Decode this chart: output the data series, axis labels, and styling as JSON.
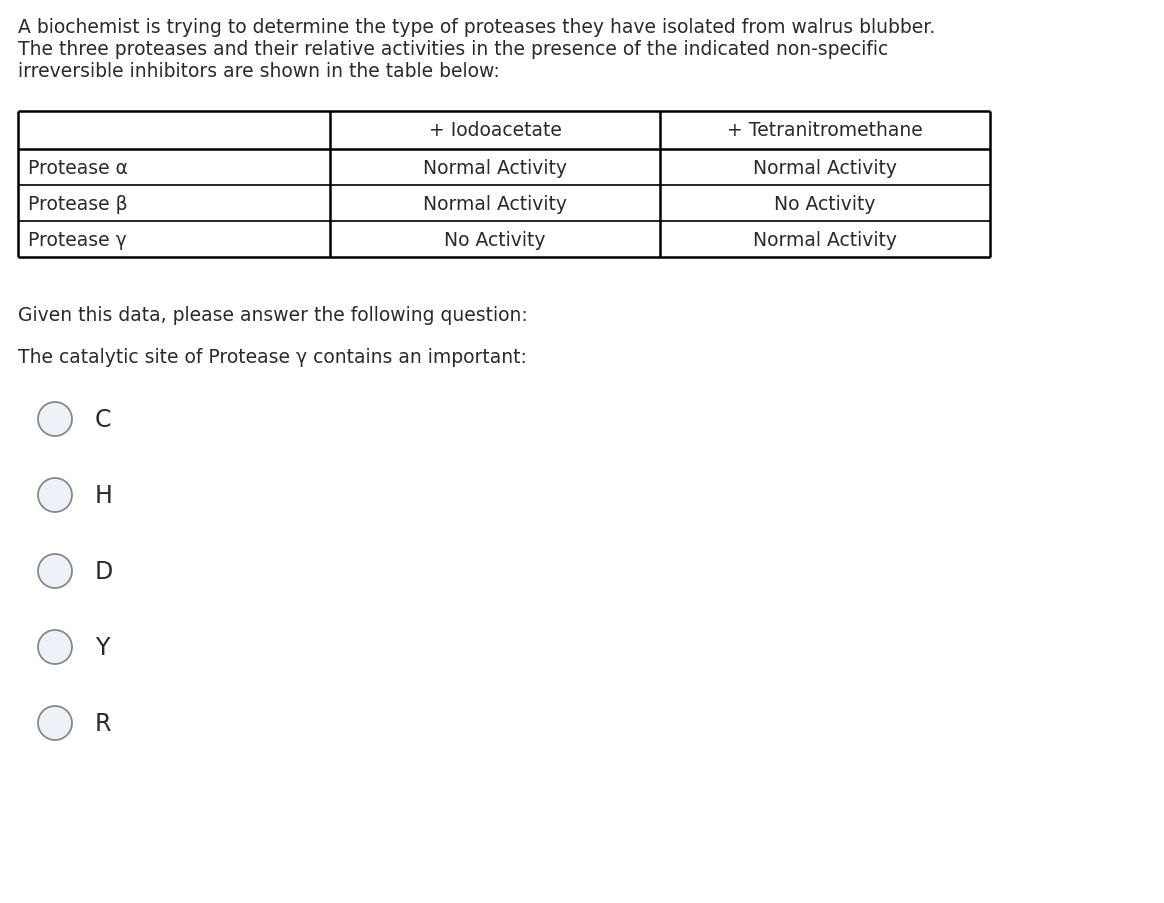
{
  "background_color": "#ffffff",
  "intro_text_lines": [
    "A biochemist is trying to determine the type of proteases they have isolated from walrus blubber.",
    "The three proteases and their relative activities in the presence of the indicated non-specific",
    "irreversible inhibitors are shown in the table below:"
  ],
  "table": {
    "headers": [
      "",
      "+ Iodoacetate",
      "+ Tetranitromethane"
    ],
    "rows": [
      [
        "Protease α",
        "Normal Activity",
        "Normal Activity"
      ],
      [
        "Protease β",
        "Normal Activity",
        "No Activity"
      ],
      [
        "Protease γ",
        "No Activity",
        "Normal Activity"
      ]
    ],
    "font_size": 13.5
  },
  "question_text": "Given this data, please answer the following question:",
  "question2_text": "The catalytic site of Protease γ contains an important:",
  "options": [
    "C",
    "H",
    "D",
    "Y",
    "R"
  ],
  "text_color": "#2a2a2a",
  "circle_fill": "#eef2f8",
  "circle_edge": "#888888",
  "font_size_intro": 13.5,
  "font_size_question": 13.5,
  "font_size_options": 17
}
